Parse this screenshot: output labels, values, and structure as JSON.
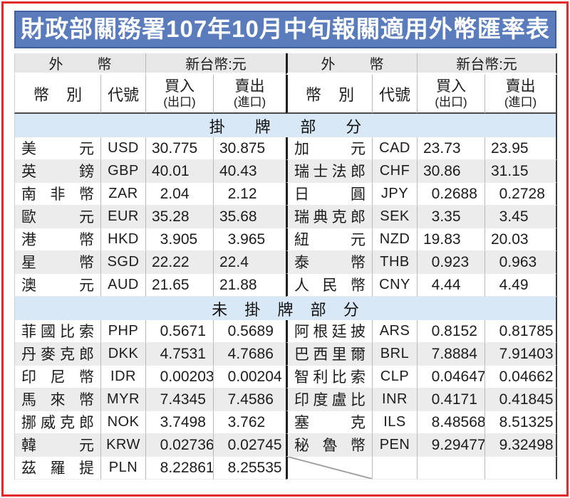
{
  "title": "財政部關務署107年10月中旬報關適用外幣匯率表",
  "header": {
    "foreign_currency_group": "外幣",
    "ntd_group": "新台幣:元",
    "currency_name": "幣別",
    "code": "代號",
    "buy_line1": "買入",
    "buy_line2": "(出口)",
    "sell_line1": "賣出",
    "sell_line2": "(進口)"
  },
  "colors": {
    "title_bg": "#5a7cbd",
    "title_border": "#40609c",
    "frame_red": "#e32a2a",
    "band_blue": "#d8e8f6",
    "row_alt": "#ececec",
    "header_gray": "#e7e7e7",
    "divider_dark": "#1f1f1f"
  },
  "sections": [
    {
      "label": "掛牌部分",
      "rows": [
        {
          "left": {
            "name": "美元",
            "code": "USD",
            "buy": "30.775",
            "sell": "30.875"
          },
          "right": {
            "name": "加元",
            "code": "CAD",
            "buy": "23.73",
            "sell": "23.95"
          }
        },
        {
          "left": {
            "name": "英鎊",
            "code": "GBP",
            "buy": "40.01",
            "sell": "40.43"
          },
          "right": {
            "name": "瑞士法郎",
            "code": "CHF",
            "buy": "30.86",
            "sell": "31.15"
          }
        },
        {
          "left": {
            "name": "南非幣",
            "code": "ZAR",
            "buy": "2.04",
            "sell": "2.12"
          },
          "right": {
            "name": "日圓",
            "code": "JPY",
            "buy": "0.2688",
            "sell": "0.2728"
          }
        },
        {
          "left": {
            "name": "歐元",
            "code": "EUR",
            "buy": "35.28",
            "sell": "35.68"
          },
          "right": {
            "name": "瑞典克郎",
            "code": "SEK",
            "buy": "3.35",
            "sell": "3.45"
          }
        },
        {
          "left": {
            "name": "港幣",
            "code": "HKD",
            "buy": "3.905",
            "sell": "3.965"
          },
          "right": {
            "name": "紐元",
            "code": "NZD",
            "buy": "19.83",
            "sell": "20.03"
          }
        },
        {
          "left": {
            "name": "星幣",
            "code": "SGD",
            "buy": "22.22",
            "sell": "22.4"
          },
          "right": {
            "name": "泰幣",
            "code": "THB",
            "buy": "0.923",
            "sell": "0.963"
          }
        },
        {
          "left": {
            "name": "澳元",
            "code": "AUD",
            "buy": "21.65",
            "sell": "21.88"
          },
          "right": {
            "name": "人民幣",
            "code": "CNY",
            "buy": "4.44",
            "sell": "4.49"
          }
        }
      ]
    },
    {
      "label": "未掛牌部分",
      "rows": [
        {
          "left": {
            "name": "菲國比索",
            "code": "PHP",
            "buy": "0.5671",
            "sell": "0.5689"
          },
          "right": {
            "name": "阿根廷披索",
            "code": "ARS",
            "buy": "0.8152",
            "sell": "0.81785"
          }
        },
        {
          "left": {
            "name": "丹麥克郎",
            "code": "DKK",
            "buy": "4.7531",
            "sell": "4.7686"
          },
          "right": {
            "name": "巴西里爾",
            "code": "BRL",
            "buy": "7.8884",
            "sell": "7.91403"
          }
        },
        {
          "left": {
            "name": "印尼幣",
            "code": "IDR",
            "buy": "0.00203",
            "sell": "0.00204"
          },
          "right": {
            "name": "智利比索",
            "code": "CLP",
            "buy": "0.04647",
            "sell": "0.04662"
          }
        },
        {
          "left": {
            "name": "馬來幣",
            "code": "MYR",
            "buy": "7.4345",
            "sell": "7.4586"
          },
          "right": {
            "name": "印度盧比",
            "code": "INR",
            "buy": "0.4171",
            "sell": "0.41845"
          }
        },
        {
          "left": {
            "name": "挪威克郎",
            "code": "NOK",
            "buy": "3.7498",
            "sell": "3.762"
          },
          "right": {
            "name": "塞克",
            "code": "ILS",
            "buy": "8.48568",
            "sell": "8.51325"
          }
        },
        {
          "left": {
            "name": "韓元",
            "code": "KRW",
            "buy": "0.02736",
            "sell": "0.02745"
          },
          "right": {
            "name": "秘魯幣",
            "code": "PEN",
            "buy": "9.29477",
            "sell": "9.32498"
          }
        },
        {
          "left": {
            "name": "茲羅提",
            "code": "PLN",
            "buy": "8.22861",
            "sell": "8.25535"
          },
          "right": null
        }
      ]
    }
  ]
}
